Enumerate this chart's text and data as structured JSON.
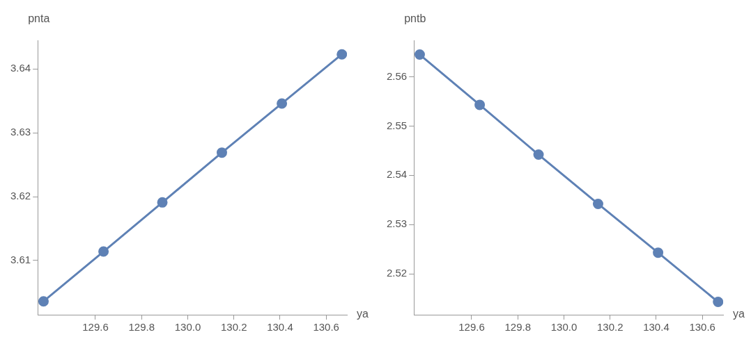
{
  "chart_data": [
    {
      "type": "line",
      "xlabel": "ya",
      "ylabel": "pnta",
      "x": [
        129.375,
        129.635,
        129.89,
        130.148,
        130.408,
        130.668
      ],
      "series": [
        {
          "color": "#5e81b5",
          "values": [
            3.6036,
            3.6114,
            3.6191,
            3.6269,
            3.6346,
            3.6423
          ]
        }
      ],
      "xlim": [
        129.35,
        130.69
      ],
      "xticks": [
        129.6,
        129.8,
        {
          "value": 130,
          "label": "130.0"
        },
        130.2,
        130.4,
        130.6
      ],
      "ylim": [
        3.6015,
        3.6445
      ],
      "yticks": [
        3.61,
        3.62,
        3.63,
        3.64
      ],
      "grid": false,
      "legend": false,
      "marker": "circle",
      "line_style": "solid"
    },
    {
      "type": "line",
      "xlabel": "ya",
      "ylabel": "pntb",
      "x": [
        129.375,
        129.635,
        129.89,
        130.148,
        130.408,
        130.668
      ],
      "series": [
        {
          "color": "#5e81b5",
          "values": [
            2.5645,
            2.5543,
            2.5442,
            2.5342,
            2.5243,
            2.5143
          ]
        }
      ],
      "xlim": [
        129.35,
        130.69
      ],
      "xticks": [
        129.6,
        129.8,
        {
          "value": 130,
          "label": "130.0"
        },
        130.2,
        130.4,
        130.6
      ],
      "ylim": [
        2.5117,
        2.5674
      ],
      "yticks": [
        2.52,
        2.53,
        2.54,
        2.55,
        2.56
      ],
      "grid": false,
      "legend": false,
      "marker": "circle",
      "line_style": "solid"
    }
  ]
}
